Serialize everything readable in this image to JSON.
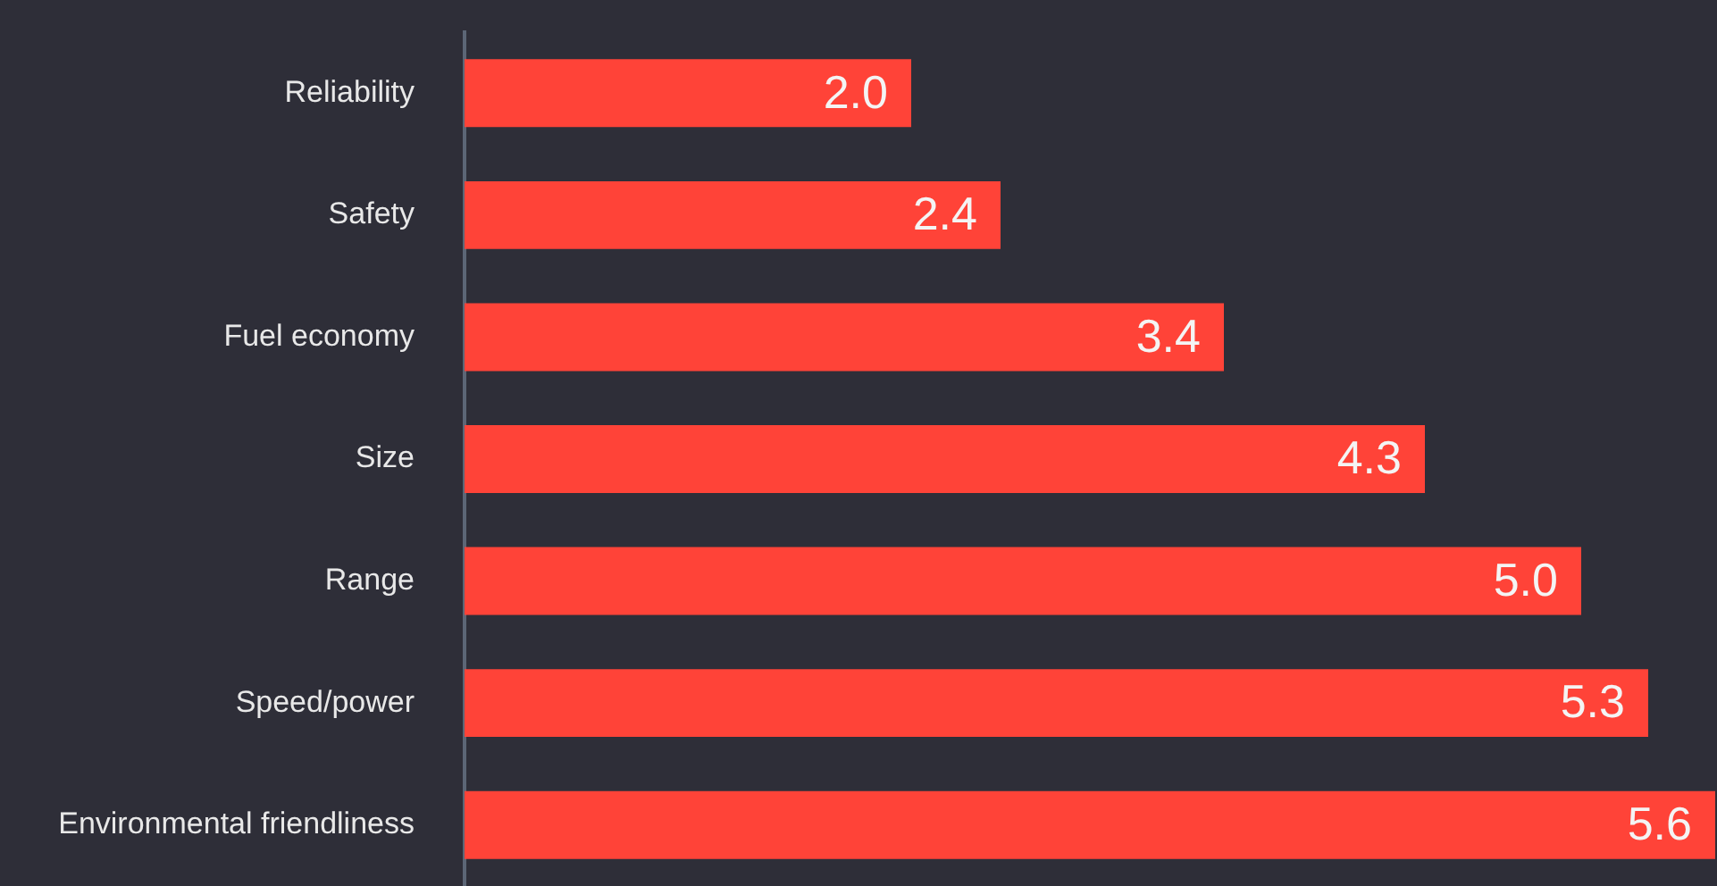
{
  "chart_data": {
    "type": "bar",
    "orientation": "horizontal",
    "categories": [
      "Reliability",
      "Safety",
      "Fuel economy",
      "Size",
      "Range",
      "Speed/power",
      "Environmental friendliness"
    ],
    "values": [
      2.0,
      2.4,
      3.4,
      4.3,
      5.0,
      5.3,
      5.6
    ],
    "value_labels": [
      "2.0",
      "2.4",
      "3.4",
      "4.3",
      "5.0",
      "5.3",
      "5.6"
    ],
    "color": "#ff4338",
    "tick_labels": "y"
  }
}
